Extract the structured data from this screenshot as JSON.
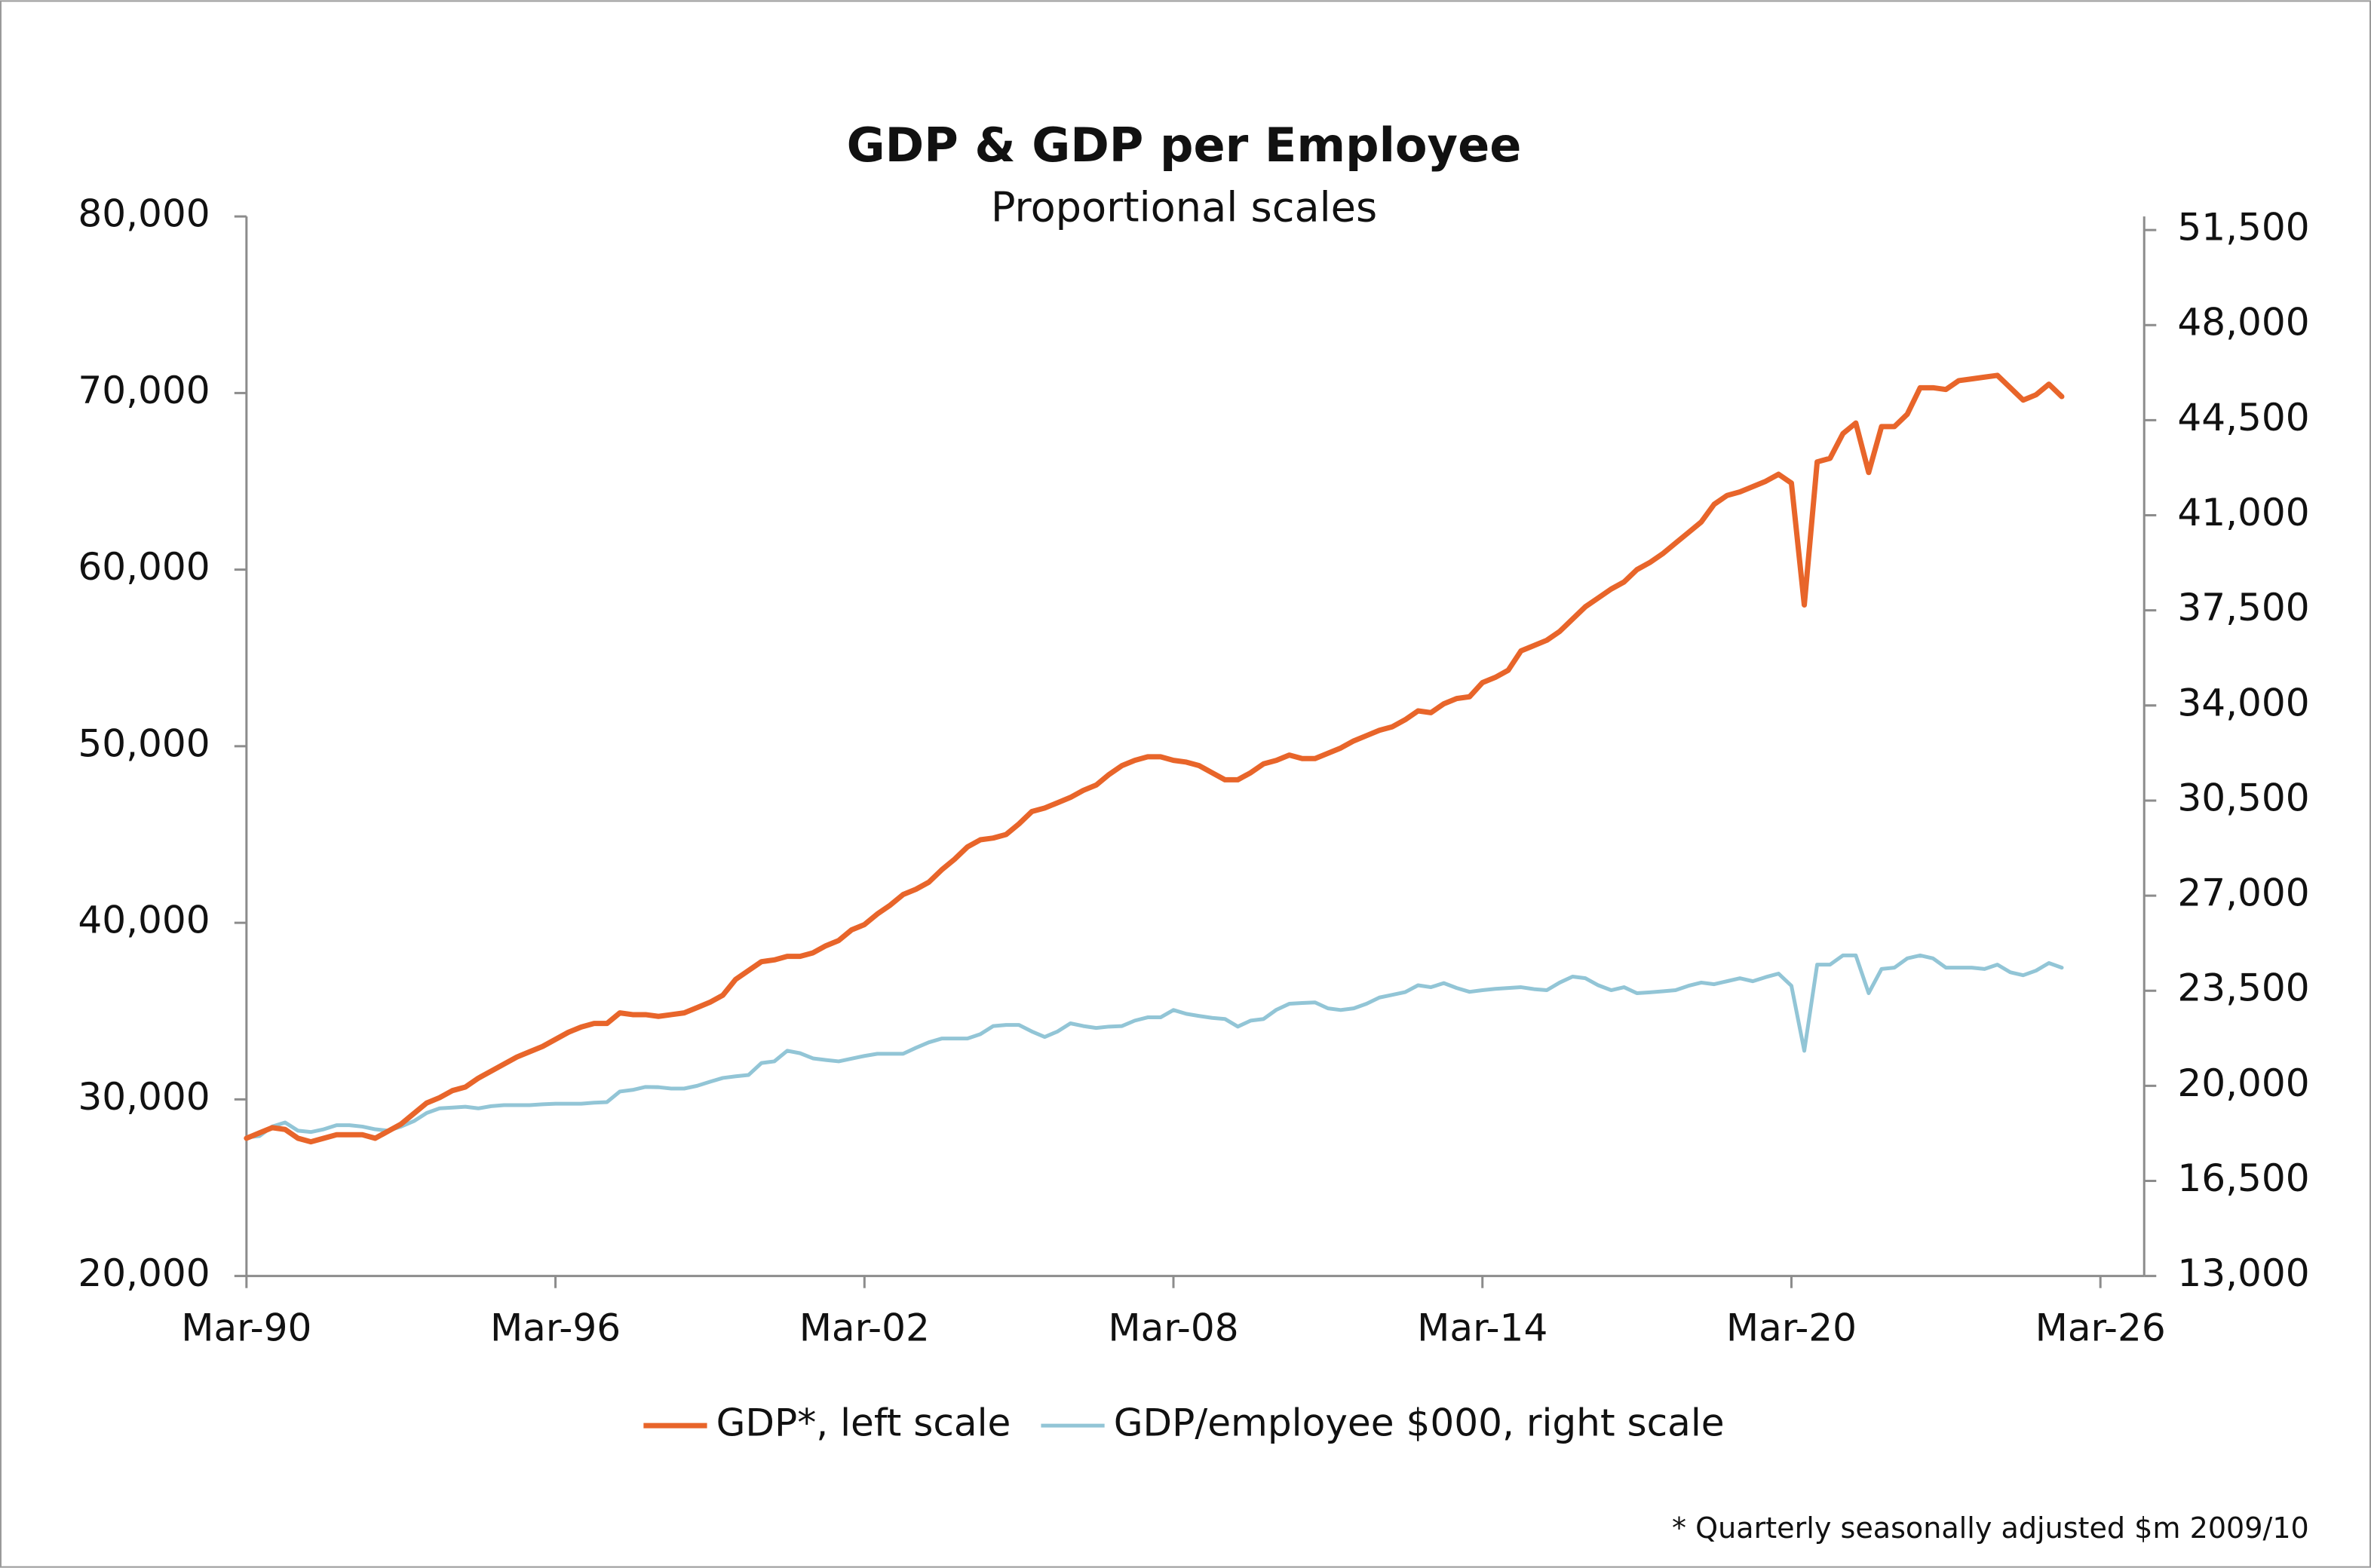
{
  "chart_data": {
    "type": "line",
    "title": "GDP & GDP per Employee",
    "subtitle": "Proportional scales",
    "footnote": "* Quarterly seasonally adjusted $m 2009/10",
    "categories": [
      "Mar-90",
      null,
      null,
      null,
      null,
      null,
      null,
      null,
      null,
      null,
      null,
      null,
      null,
      null,
      null,
      null,
      null,
      null,
      null,
      null,
      null,
      null,
      null,
      null,
      "Mar-96",
      null,
      null,
      null,
      null,
      null,
      null,
      null,
      null,
      null,
      null,
      null,
      null,
      null,
      null,
      null,
      null,
      null,
      null,
      null,
      null,
      null,
      null,
      null,
      "Mar-02",
      null,
      null,
      null,
      null,
      null,
      null,
      null,
      null,
      null,
      null,
      null,
      null,
      null,
      null,
      null,
      null,
      null,
      null,
      null,
      null,
      null,
      null,
      null,
      "Mar-08",
      null,
      null,
      null,
      null,
      null,
      null,
      null,
      null,
      null,
      null,
      null,
      null,
      null,
      null,
      null,
      null,
      null,
      null,
      null,
      null,
      null,
      null,
      null,
      "Mar-14",
      null,
      null,
      null,
      null,
      null,
      null,
      null,
      null,
      null,
      null,
      null,
      null,
      null,
      null,
      null,
      null,
      null,
      null,
      null,
      null,
      null,
      null,
      null,
      "Mar-20",
      null,
      null,
      null,
      null,
      null,
      null,
      null,
      null,
      null,
      null,
      null,
      null,
      null,
      null,
      null,
      null,
      null,
      null,
      null,
      null,
      null,
      null,
      null,
      "Mar-26"
    ],
    "series": [
      {
        "name": "GDP*, left scale",
        "color": "#e8652a",
        "axis": "y",
        "values": [
          27800,
          28100,
          28400,
          28300,
          27800,
          27600,
          27800,
          28000,
          28000,
          28000,
          27800,
          28200,
          28600,
          29200,
          29800,
          30100,
          30500,
          30700,
          31200,
          31600,
          32000,
          32400,
          32700,
          33000,
          33400,
          33800,
          34100,
          34300,
          34300,
          34900,
          34800,
          34800,
          34700,
          34800,
          34900,
          35200,
          35500,
          35900,
          36800,
          37300,
          37800,
          37900,
          38100,
          38100,
          38300,
          38700,
          39000,
          39600,
          39900,
          40500,
          41000,
          41600,
          41900,
          42300,
          43000,
          43600,
          44300,
          44700,
          44800,
          45000,
          45600,
          46300,
          46500,
          46800,
          47100,
          47500,
          47800,
          48400,
          48900,
          49200,
          49400,
          49400,
          49200,
          49100,
          48900,
          48500,
          48100,
          48100,
          48500,
          49000,
          49200,
          49500,
          49300,
          49300,
          49600,
          49900,
          50300,
          50600,
          50900,
          51100,
          51500,
          52000,
          51900,
          52400,
          52700,
          52800,
          53600,
          53900,
          54300,
          55400,
          55700,
          56000,
          56500,
          57200,
          57900,
          58400,
          58900,
          59300,
          60000,
          60400,
          60900,
          61500,
          62100,
          62700,
          63700,
          64200,
          64400,
          64700,
          65000,
          65400,
          64900,
          58000,
          66100,
          66300,
          67700,
          68300,
          65500,
          68100,
          68100,
          68800,
          70300,
          70300,
          70200,
          70700,
          70800,
          70900,
          71000,
          70300,
          69600,
          69900,
          70500,
          69800,
          null,
          null,
          null
        ]
      },
      {
        "name": "GDP/employee $000, right scale",
        "color": "#92c5d6",
        "axis": "y2",
        "values": [
          18100,
          18150,
          18500,
          18650,
          18350,
          18300,
          18400,
          18550,
          18550,
          18500,
          18400,
          18350,
          18500,
          18700,
          19000,
          19170,
          19200,
          19230,
          19170,
          19250,
          19290,
          19290,
          19290,
          19320,
          19340,
          19340,
          19340,
          19380,
          19400,
          19790,
          19850,
          19960,
          19950,
          19900,
          19900,
          20000,
          20150,
          20290,
          20350,
          20400,
          20840,
          20900,
          21290,
          21200,
          21010,
          20950,
          20900,
          21000,
          21100,
          21180,
          21180,
          21180,
          21400,
          21600,
          21740,
          21740,
          21740,
          21900,
          22200,
          22240,
          22240,
          22000,
          21800,
          22000,
          22300,
          22200,
          22130,
          22180,
          22200,
          22400,
          22520,
          22520,
          22790,
          22650,
          22570,
          22500,
          22460,
          22180,
          22400,
          22460,
          22800,
          23020,
          23050,
          23070,
          22850,
          22790,
          22850,
          23020,
          23250,
          23350,
          23450,
          23700,
          23630,
          23780,
          23600,
          23460,
          23520,
          23570,
          23600,
          23630,
          23560,
          23520,
          23800,
          24020,
          23960,
          23700,
          23520,
          23630,
          23410,
          23440,
          23480,
          23520,
          23680,
          23800,
          23740,
          23850,
          23960,
          23850,
          24000,
          24130,
          23680,
          21290,
          24460,
          24460,
          24800,
          24800,
          23410,
          24300,
          24350,
          24690,
          24800,
          24690,
          24350,
          24350,
          24350,
          24300,
          24460,
          24180,
          24070,
          24240,
          24520,
          24350,
          null,
          null,
          null
        ]
      }
    ],
    "ylim": [
      20000,
      80000
    ],
    "yticks": [
      {
        "value": 20000,
        "label": "20,000"
      },
      {
        "value": 30000,
        "label": "30,000"
      },
      {
        "value": 40000,
        "label": "40,000"
      },
      {
        "value": 50000,
        "label": "50,000"
      },
      {
        "value": 60000,
        "label": "60,000"
      },
      {
        "value": 70000,
        "label": "70,000"
      },
      {
        "value": 80000,
        "label": "80,000"
      }
    ],
    "y2lim": [
      13000,
      52000
    ],
    "y2ticks": [
      {
        "value": 13000,
        "label": "13,000"
      },
      {
        "value": 16500,
        "label": "16,500"
      },
      {
        "value": 20000,
        "label": "20,000"
      },
      {
        "value": 23500,
        "label": "23,500"
      },
      {
        "value": 27000,
        "label": "27,000"
      },
      {
        "value": 30500,
        "label": "30,500"
      },
      {
        "value": 34000,
        "label": "34,000"
      },
      {
        "value": 37500,
        "label": "37,500"
      },
      {
        "value": 41000,
        "label": "41,000"
      },
      {
        "value": 44500,
        "label": "44,500"
      },
      {
        "value": 48000,
        "label": "48,000"
      },
      {
        "value": 51500,
        "label": "51,500"
      }
    ],
    "grid": false,
    "legend": "bottom"
  }
}
